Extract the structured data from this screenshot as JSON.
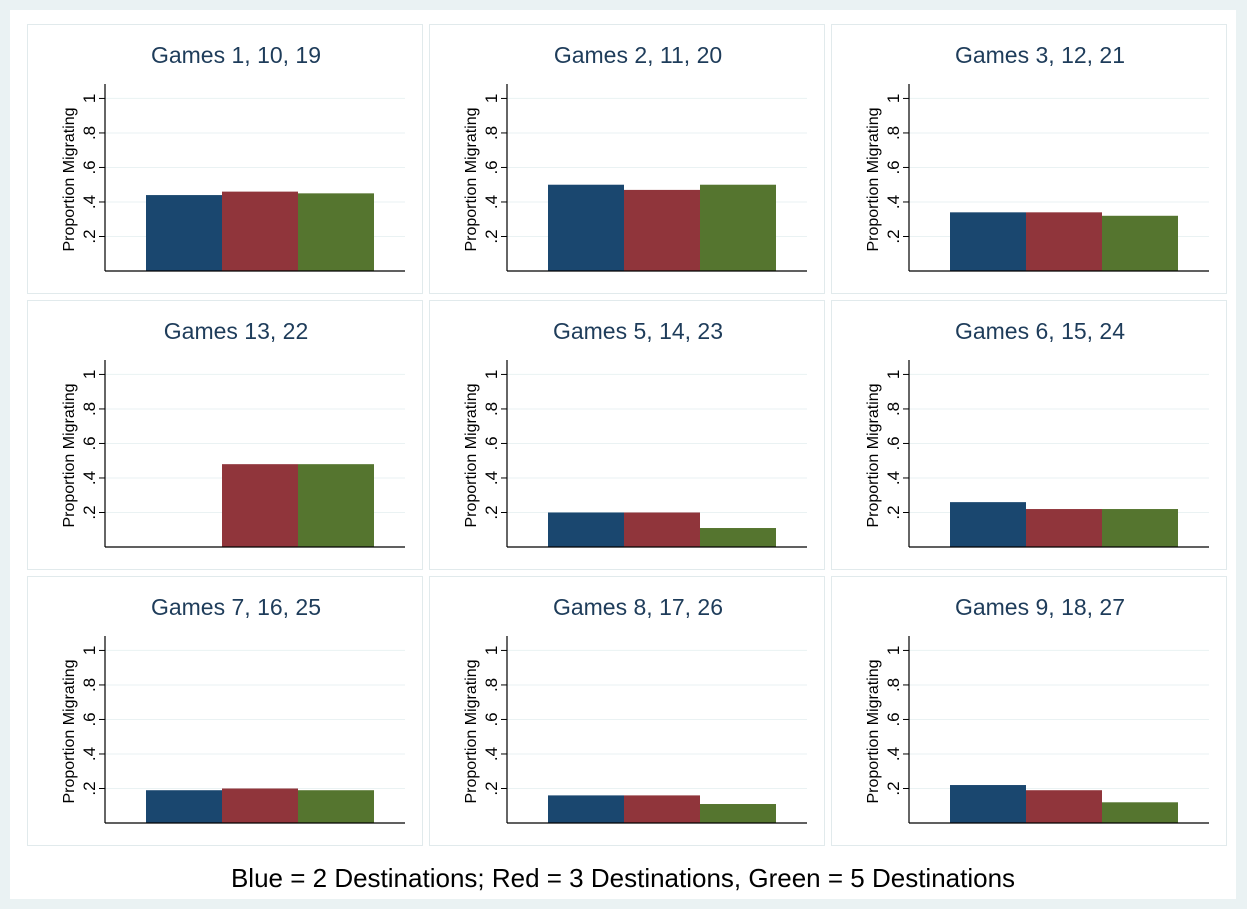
{
  "chart_data": {
    "type": "bar",
    "ylabel": "Proportion Migrating",
    "yticks": [
      ".2",
      ".4",
      ".6",
      ".8",
      "1"
    ],
    "ytick_values": [
      0.2,
      0.4,
      0.6,
      0.8,
      1.0
    ],
    "ylim": [
      0.0,
      1.13
    ],
    "grid": true,
    "series_colors": [
      "#1a476f",
      "#90353b",
      "#55752f"
    ],
    "caption": "Blue = 2 Destinations; Red =  3 Destinations, Green = 5 Destinations",
    "panels": [
      {
        "title": "Games 1, 10, 19",
        "values": [
          0.44,
          0.46,
          0.45
        ]
      },
      {
        "title": "Games 2, 11, 20",
        "values": [
          0.5,
          0.47,
          0.5
        ]
      },
      {
        "title": "Games 3, 12, 21",
        "values": [
          0.34,
          0.34,
          0.32
        ]
      },
      {
        "title": "Games 13, 22",
        "values": [
          null,
          0.48,
          0.48
        ]
      },
      {
        "title": "Games 5, 14, 23",
        "values": [
          0.2,
          0.2,
          0.11
        ]
      },
      {
        "title": "Games 6, 15, 24",
        "values": [
          0.26,
          0.22,
          0.22
        ]
      },
      {
        "title": "Games 7, 16, 25",
        "values": [
          0.19,
          0.2,
          0.19
        ]
      },
      {
        "title": "Games 8, 17, 26",
        "values": [
          0.16,
          0.16,
          0.11
        ]
      },
      {
        "title": "Games 9, 18, 27",
        "values": [
          0.22,
          0.19,
          0.12
        ]
      }
    ]
  }
}
